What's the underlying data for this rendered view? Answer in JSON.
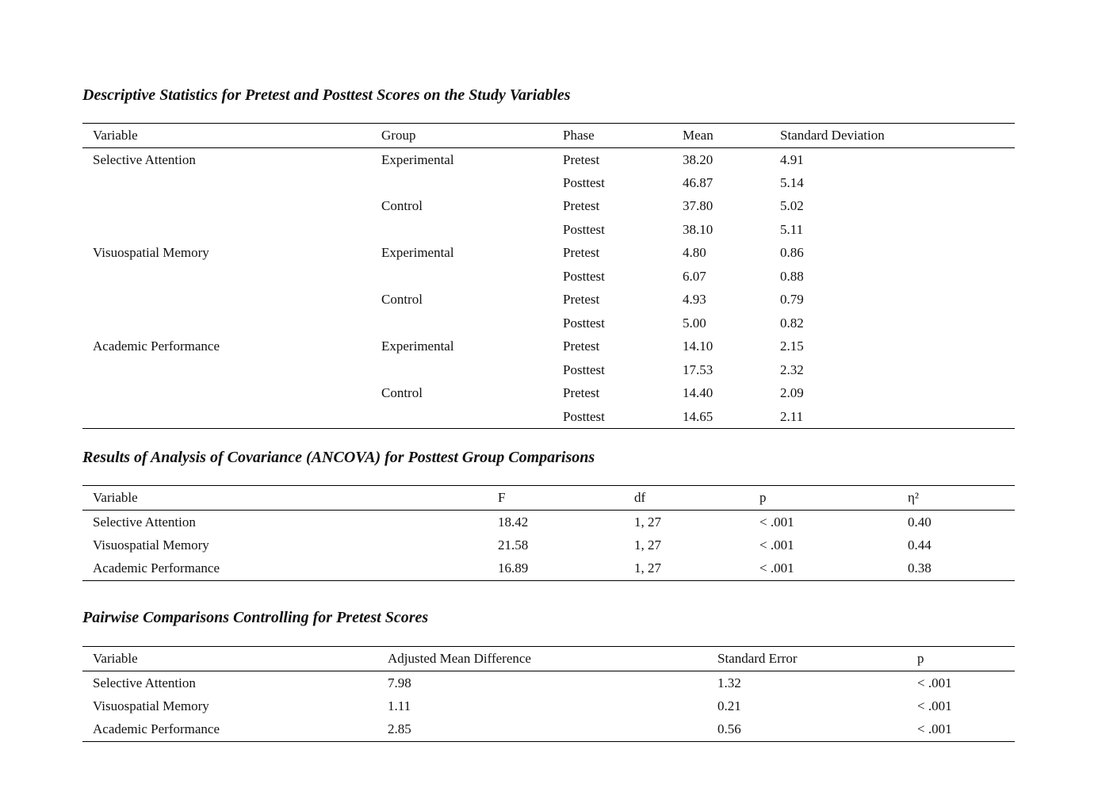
{
  "descriptive": {
    "title": "Descriptive Statistics for Pretest and Posttest Scores on the Study Variables",
    "columns": [
      "Variable",
      "Group",
      "Phase",
      "Mean",
      "Standard Deviation"
    ],
    "variables": [
      {
        "name": "Selective Attention",
        "groups": [
          {
            "name": "Experimental",
            "phases": [
              {
                "phase": "Pretest",
                "mean": "38.20",
                "sd": "4.91"
              },
              {
                "phase": "Posttest",
                "mean": "46.87",
                "sd": "5.14"
              }
            ]
          },
          {
            "name": "Control",
            "phases": [
              {
                "phase": "Pretest",
                "mean": "37.80",
                "sd": "5.02"
              },
              {
                "phase": "Posttest",
                "mean": "38.10",
                "sd": "5.11"
              }
            ]
          }
        ]
      },
      {
        "name": "Visuospatial Memory",
        "groups": [
          {
            "name": "Experimental",
            "phases": [
              {
                "phase": "Pretest",
                "mean": "4.80",
                "sd": "0.86"
              },
              {
                "phase": "Posttest",
                "mean": "6.07",
                "sd": "0.88"
              }
            ]
          },
          {
            "name": "Control",
            "phases": [
              {
                "phase": "Pretest",
                "mean": "4.93",
                "sd": "0.79"
              },
              {
                "phase": "Posttest",
                "mean": "5.00",
                "sd": "0.82"
              }
            ]
          }
        ]
      },
      {
        "name": "Academic Performance",
        "groups": [
          {
            "name": "Experimental",
            "phases": [
              {
                "phase": "Pretest",
                "mean": "14.10",
                "sd": "2.15"
              },
              {
                "phase": "Posttest",
                "mean": "17.53",
                "sd": "2.32"
              }
            ]
          },
          {
            "name": "Control",
            "phases": [
              {
                "phase": "Pretest",
                "mean": "14.40",
                "sd": "2.09"
              },
              {
                "phase": "Posttest",
                "mean": "14.65",
                "sd": "2.11"
              }
            ]
          }
        ]
      }
    ]
  },
  "ancova": {
    "title": "Results of Analysis of Covariance (ANCOVA) for Posttest Group Comparisons",
    "columns": [
      "Variable",
      "F",
      "df",
      "p",
      "η²"
    ],
    "rows": [
      [
        "Selective Attention",
        "18.42",
        "1, 27",
        "< .001",
        "0.40"
      ],
      [
        "Visuospatial Memory",
        "21.58",
        "1, 27",
        "< .001",
        "0.44"
      ],
      [
        "Academic Performance",
        "16.89",
        "1, 27",
        "< .001",
        "0.38"
      ]
    ]
  },
  "pairwise": {
    "title": "Pairwise Comparisons Controlling for Pretest Scores",
    "columns": [
      "Variable",
      "Adjusted Mean Difference",
      "Standard Error",
      "p"
    ],
    "rows": [
      [
        "Selective Attention",
        "7.98",
        "1.32",
        "< .001"
      ],
      [
        "Visuospatial Memory",
        "1.11",
        "0.21",
        "< .001"
      ],
      [
        "Academic Performance",
        "2.85",
        "0.56",
        "< .001"
      ]
    ]
  }
}
